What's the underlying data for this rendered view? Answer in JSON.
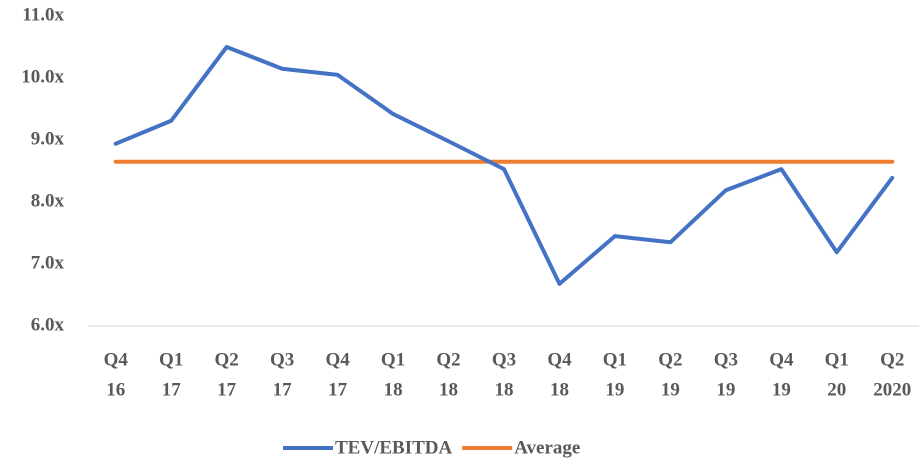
{
  "chart_data": {
    "type": "line",
    "categories": [
      [
        "Q4",
        "16"
      ],
      [
        "Q1",
        "17"
      ],
      [
        "Q2",
        "17"
      ],
      [
        "Q3",
        "17"
      ],
      [
        "Q4",
        "17"
      ],
      [
        "Q1",
        "18"
      ],
      [
        "Q2",
        "18"
      ],
      [
        "Q3",
        "18"
      ],
      [
        "Q4",
        "18"
      ],
      [
        "Q1",
        "19"
      ],
      [
        "Q2",
        "19"
      ],
      [
        "Q3",
        "19"
      ],
      [
        "Q4",
        "19"
      ],
      [
        "Q1",
        "20"
      ],
      [
        "Q2",
        "2020"
      ]
    ],
    "series": [
      {
        "name": "TEV/EBITDA",
        "color": "#4472c4",
        "values": [
          8.94,
          9.31,
          10.5,
          10.15,
          10.05,
          9.42,
          8.98,
          8.53,
          6.68,
          7.45,
          7.35,
          8.19,
          8.53,
          7.19,
          8.39
        ]
      },
      {
        "name": "Average",
        "color": "#ed7d31",
        "values": [
          8.65,
          8.65,
          8.65,
          8.65,
          8.65,
          8.65,
          8.65,
          8.65,
          8.65,
          8.65,
          8.65,
          8.65,
          8.65,
          8.65,
          8.65
        ]
      }
    ],
    "ylim": [
      6,
      11
    ],
    "yticks": [
      {
        "value": 6,
        "label": "6.0x"
      },
      {
        "value": 7,
        "label": "7.0x"
      },
      {
        "value": 8,
        "label": "8.0x"
      },
      {
        "value": 9,
        "label": "9.0x"
      },
      {
        "value": 10,
        "label": "10.0x"
      },
      {
        "value": 11,
        "label": "11.0x"
      }
    ],
    "grid": false,
    "legend": "bottom"
  }
}
